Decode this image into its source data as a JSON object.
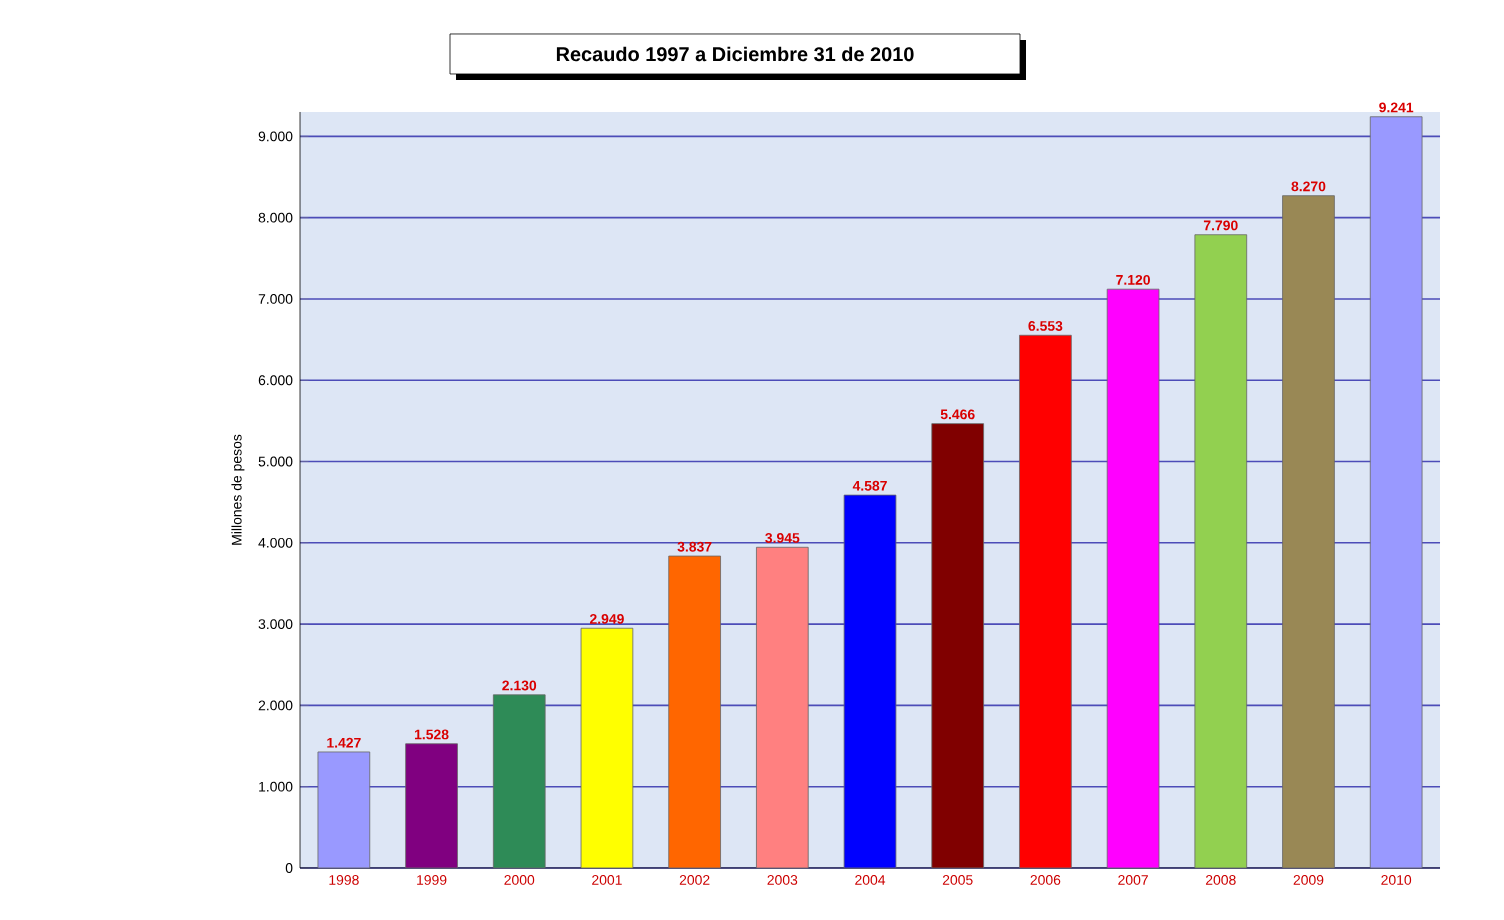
{
  "chart_data": {
    "type": "bar",
    "title": "Recaudo 1997 a Diciembre 31 de 2010",
    "ylabel": "Millones de pesos",
    "categories": [
      "1998",
      "1999",
      "2000",
      "2001",
      "2002",
      "2003",
      "2004",
      "2005",
      "2006",
      "2007",
      "2008",
      "2009",
      "2010"
    ],
    "values": [
      1427,
      1528,
      2130,
      2949,
      3837,
      3945,
      4587,
      5466,
      6553,
      7120,
      7790,
      8270,
      9241
    ],
    "colors": [
      "#9999ff",
      "#800080",
      "#2e8b57",
      "#ffff00",
      "#ff6600",
      "#ff8080",
      "#0000ff",
      "#800000",
      "#ff0000",
      "#ff00ff",
      "#92d050",
      "#998855",
      "#9999ff"
    ],
    "value_labels": [
      "1.427",
      "1.528",
      "2.130",
      "2.949",
      "3.837",
      "3.945",
      "4.587",
      "5.466",
      "6.553",
      "7.120",
      "7.790",
      "8.270",
      "9.241"
    ],
    "ylim": [
      0,
      9300
    ],
    "yticks": [
      0,
      {
        "value": 1000,
        "label": "1.000"
      },
      {
        "value": 2000,
        "label": "2.000"
      },
      {
        "value": 3000,
        "label": "3.000"
      },
      {
        "value": 4000,
        "label": "4.000"
      },
      {
        "value": 5000,
        "label": "5.000"
      },
      {
        "value": 6000,
        "label": "6.000"
      },
      {
        "value": 7000,
        "label": "7.000"
      },
      {
        "value": 8000,
        "label": "8.000"
      },
      {
        "value": 9000,
        "label": "9.000"
      }
    ],
    "grid": "y"
  }
}
